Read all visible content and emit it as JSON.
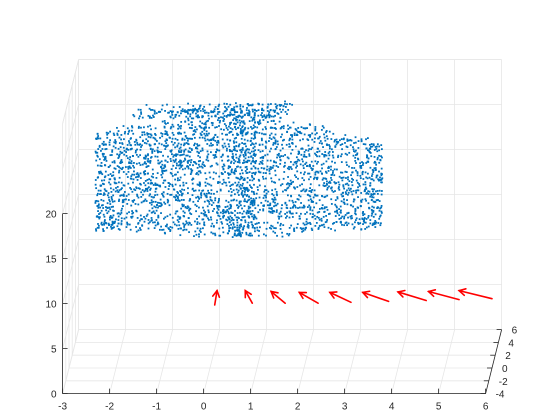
{
  "chart_data": {
    "type": "scatter",
    "projection": "3d",
    "grid": true,
    "x_ticks": [
      "-3",
      "-2",
      "-1",
      "0",
      "1",
      "2",
      "3",
      "4",
      "5",
      "6"
    ],
    "xlim": [
      -3,
      6
    ],
    "y_ticks": [
      "-4",
      "-2",
      "0",
      "2",
      "4",
      "6"
    ],
    "ylim": [
      -4,
      6
    ],
    "z_ticks": [
      "0",
      "5",
      "10",
      "15",
      "20"
    ],
    "zlim": [
      0,
      20
    ],
    "series": [
      {
        "kind": "points",
        "color": "#0072bd",
        "description_values": {
          "x_range": [
            -2.7,
            3.5
          ],
          "z_range": [
            11,
            25
          ],
          "y_approx": 5
        }
      },
      {
        "kind": "arrows",
        "color": "#ff0000",
        "vectors": [
          {
            "x": 0.1,
            "z": 7.0,
            "dx": 0.05,
            "dz": 1.6
          },
          {
            "x": 0.9,
            "z": 7.2,
            "dx": -0.15,
            "dz": 1.4
          },
          {
            "x": 1.6,
            "z": 7.2,
            "dx": -0.3,
            "dz": 1.3
          },
          {
            "x": 2.3,
            "z": 7.2,
            "dx": -0.4,
            "dz": 1.2
          },
          {
            "x": 3.0,
            "z": 7.3,
            "dx": -0.45,
            "dz": 1.1
          },
          {
            "x": 3.8,
            "z": 7.4,
            "dx": -0.55,
            "dz": 1.0
          },
          {
            "x": 4.6,
            "z": 7.5,
            "dx": -0.6,
            "dz": 0.95
          },
          {
            "x": 5.3,
            "z": 7.6,
            "dx": -0.65,
            "dz": 0.9
          },
          {
            "x": 6.0,
            "z": 7.7,
            "dx": -0.7,
            "dz": 0.9
          }
        ]
      }
    ]
  }
}
